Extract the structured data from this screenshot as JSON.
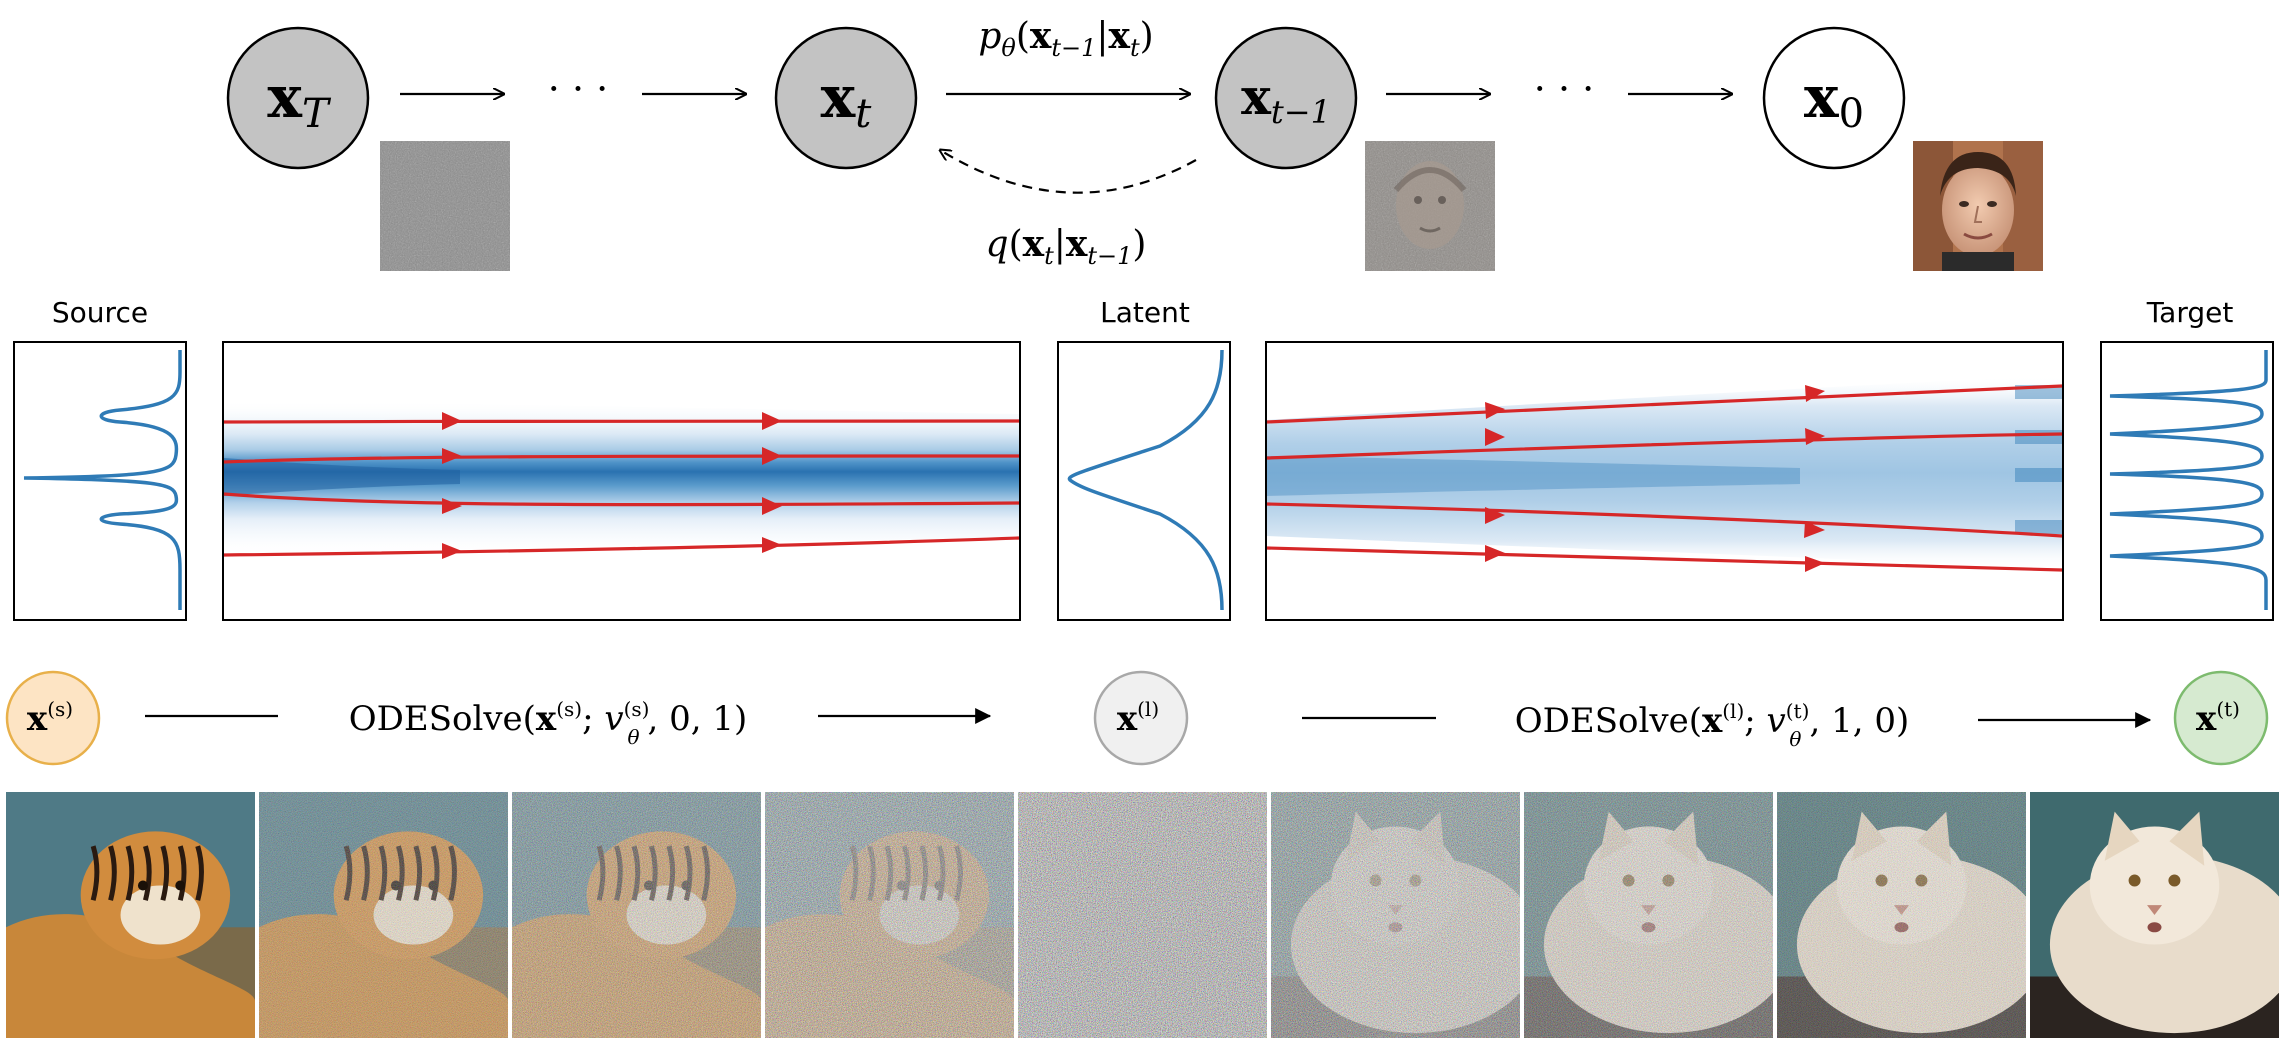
{
  "markov_chain": {
    "nodes": [
      {
        "base": "x",
        "sub": "T",
        "fill": "#c3c3c3"
      },
      {
        "base": "x",
        "sub": "t",
        "fill": "#c3c3c3"
      },
      {
        "base": "x",
        "sub": "t−1",
        "fill": "#c3c3c3"
      },
      {
        "base": "x",
        "sub": "0",
        "fill": "#ffffff"
      }
    ],
    "ellipsis": "· · ·",
    "reverse_label": {
      "p": "p",
      "theta": "θ",
      "open": "(",
      "x1": "x",
      "s1": "t−1",
      "bar": "|",
      "x2": "x",
      "s2": "t",
      "close": ")"
    },
    "forward_label": {
      "q": "q",
      "open": "(",
      "x1": "x",
      "s1": "t",
      "bar": "|",
      "x2": "x",
      "s2": "t−1",
      "close": ")"
    }
  },
  "flow": {
    "panel_labels": {
      "source": "Source",
      "latent": "Latent",
      "target": "Target"
    },
    "curve_color": "#2f7bb6",
    "trajectory_color": "#d62728",
    "heat_color": "#1f6fb4"
  },
  "ode": {
    "nodes": [
      {
        "base": "x",
        "sup": "(s)",
        "fill": "#fde4c4",
        "stroke": "#e8b04a"
      },
      {
        "base": "x",
        "sup": "(l)",
        "fill": "#f0f0f0",
        "stroke": "#a8a8a8"
      },
      {
        "base": "x",
        "sup": "(t)",
        "fill": "#d6ead0",
        "stroke": "#7dbb6e"
      }
    ],
    "solve1": {
      "fn": "ODESolve(",
      "x": "x",
      "xsup": "(s)",
      "semi": "; ",
      "v": "v",
      "vsub": "θ",
      "vsup": "(s)",
      "args": ", 0, 1)"
    },
    "solve2": {
      "fn": "ODESolve(",
      "x": "x",
      "xsup": "(l)",
      "semi": "; ",
      "v": "v",
      "vsub": "θ",
      "vsup": "(t)",
      "args": ", 1, 0)"
    }
  },
  "image_strip": {
    "frames": [
      {
        "subject": "tiger",
        "noise": 0.0
      },
      {
        "subject": "tiger",
        "noise": 0.4
      },
      {
        "subject": "tiger",
        "noise": 0.6
      },
      {
        "subject": "tiger",
        "noise": 0.8
      },
      {
        "subject": "none",
        "noise": 1.0
      },
      {
        "subject": "cat",
        "noise": 0.8
      },
      {
        "subject": "cat",
        "noise": 0.6
      },
      {
        "subject": "cat",
        "noise": 0.4
      },
      {
        "subject": "cat",
        "noise": 0.0
      }
    ]
  }
}
